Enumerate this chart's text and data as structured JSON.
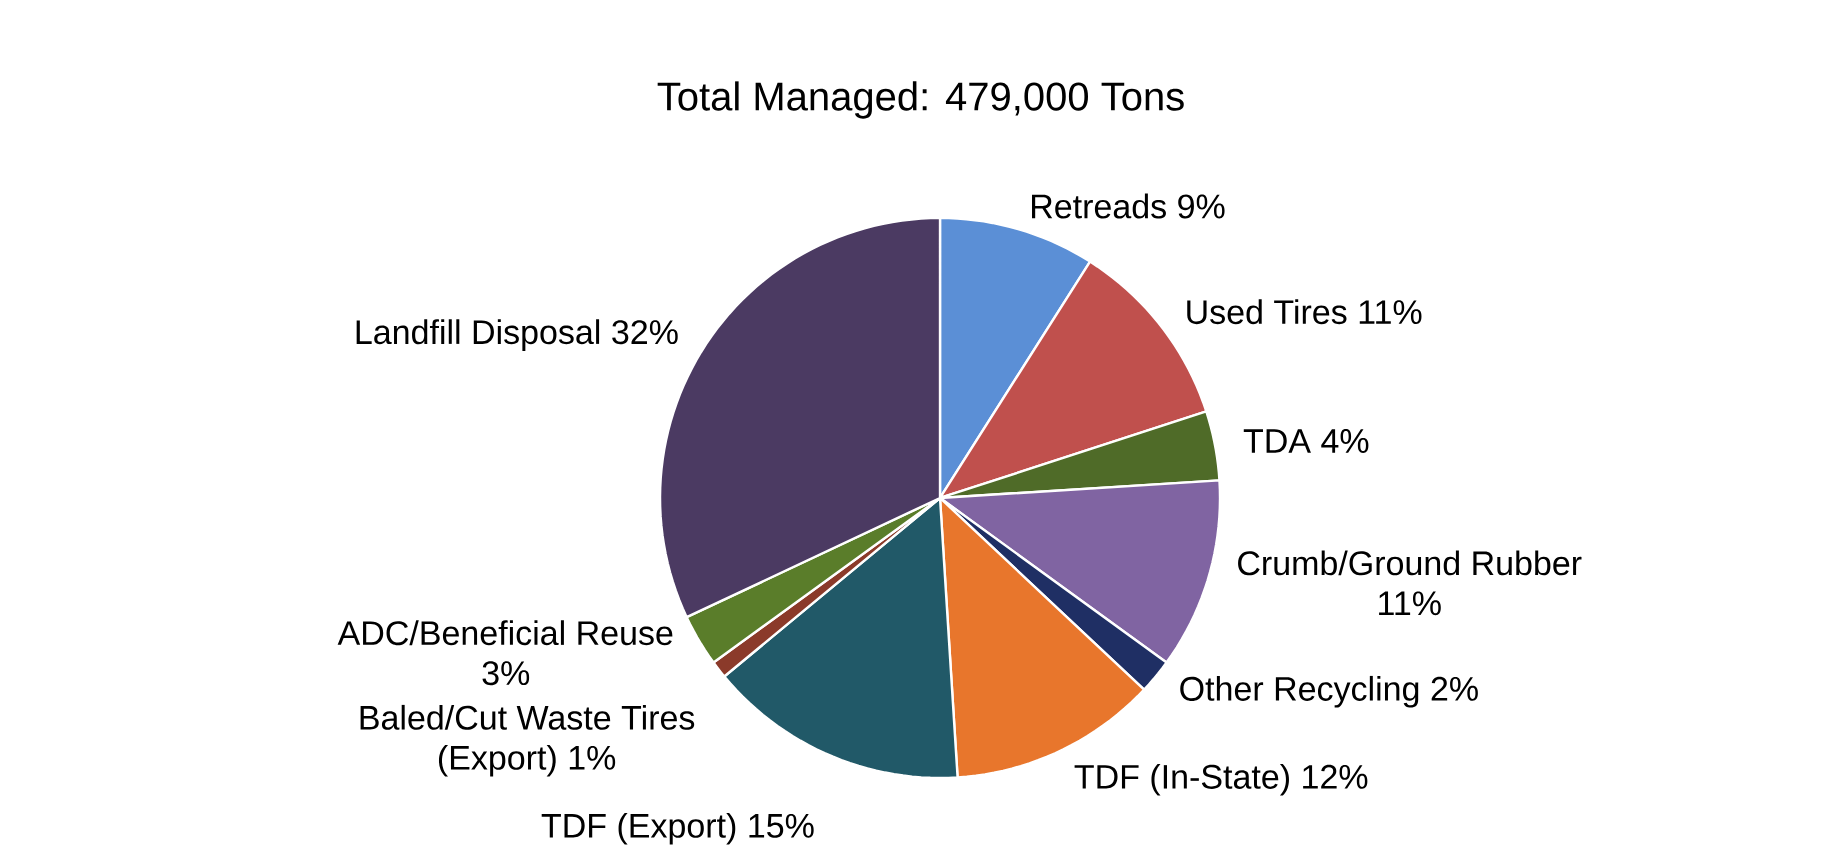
{
  "chart_data": {
    "type": "pie",
    "title": "Total Managed: 479,000 Tons",
    "categories": [
      "Retreads",
      "Used Tires",
      "TDA",
      "Crumb/Ground Rubber",
      "Other Recycling",
      "TDF (In-State)",
      "TDF (Export)",
      "Baled/Cut Waste Tires (Export)",
      "ADC/Beneficial Reuse",
      "Landfill Disposal"
    ],
    "values": [
      9,
      11,
      4,
      11,
      2,
      12,
      15,
      1,
      3,
      32
    ],
    "value_labels": [
      "9%",
      "11%",
      "4%",
      "11%",
      "2%",
      "12%",
      "15%",
      "1%",
      "3%",
      "32%"
    ],
    "colors": [
      "#5b8fd6",
      "#c0504d",
      "#4f6b28",
      "#8064a2",
      "#1f2f64",
      "#e8762c",
      "#215968",
      "#8b3a2a",
      "#5a7d2a",
      "#4b3a62"
    ]
  }
}
